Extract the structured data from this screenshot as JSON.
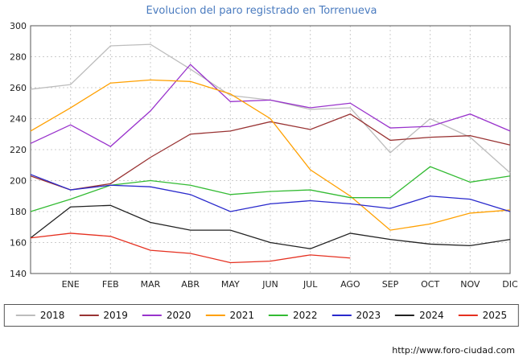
{
  "title": "Evolucion del paro registrado en Torrenueva",
  "style": {
    "title_color": "#4a7bbf",
    "grid_color": "#cccccc",
    "axis_color": "#555555",
    "tick_label_color": "#222222"
  },
  "footer": {
    "url": "http://www.foro-ciudad.com"
  },
  "chart_data": {
    "type": "line",
    "title": "Evolucion del paro registrado en Torrenueva",
    "categories": [
      "ENE",
      "FEB",
      "MAR",
      "ABR",
      "MAY",
      "JUN",
      "JUL",
      "AGO",
      "SEP",
      "OCT",
      "NOV",
      "DIC"
    ],
    "x_count": 13,
    "ylim": [
      140,
      300
    ],
    "ytick_step": 20,
    "grid": true,
    "legend_position": "bottom",
    "series": [
      {
        "name": "2018",
        "color": "#bdbdbd",
        "values": [
          259,
          262,
          287,
          288,
          272,
          255,
          252,
          246,
          247,
          218,
          240,
          228,
          205
        ]
      },
      {
        "name": "2019",
        "color": "#993333",
        "values": [
          203,
          194,
          198,
          215,
          230,
          232,
          238,
          233,
          243,
          226,
          228,
          229,
          223
        ]
      },
      {
        "name": "2020",
        "color": "#9933cc",
        "values": [
          224,
          236,
          222,
          245,
          275,
          251,
          252,
          247,
          250,
          234,
          235,
          243,
          232
        ]
      },
      {
        "name": "2021",
        "color": "#ffa000",
        "values": [
          232,
          247,
          263,
          265,
          264,
          256,
          240,
          207,
          190,
          168,
          172,
          179,
          181
        ]
      },
      {
        "name": "2022",
        "color": "#33bb33",
        "values": [
          180,
          188,
          197,
          200,
          197,
          191,
          193,
          194,
          189,
          189,
          209,
          199,
          203
        ]
      },
      {
        "name": "2023",
        "color": "#2929cc",
        "values": [
          204,
          194,
          197,
          196,
          191,
          180,
          185,
          187,
          185,
          182,
          190,
          188,
          180
        ]
      },
      {
        "name": "2024",
        "color": "#222222",
        "values": [
          163,
          183,
          184,
          173,
          168,
          168,
          160,
          156,
          166,
          162,
          159,
          158,
          162
        ]
      },
      {
        "name": "2025",
        "color": "#e53020",
        "values": [
          163,
          166,
          164,
          155,
          153,
          147,
          148,
          152,
          150
        ]
      }
    ]
  }
}
